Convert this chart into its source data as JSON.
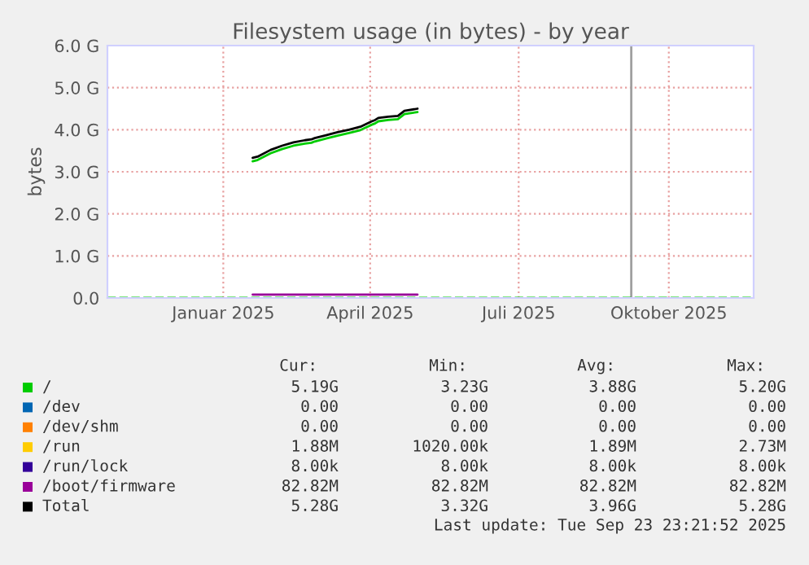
{
  "chart_data": {
    "type": "line",
    "title": "Filesystem usage (in bytes) - by year",
    "ylabel": "bytes",
    "x": [
      "2025-01-19",
      "2025-01-22",
      "2025-01-26",
      "2025-01-30",
      "2025-02-06",
      "2025-02-13",
      "2025-02-20",
      "2025-02-24",
      "2025-02-25",
      "2025-02-26",
      "2025-03-05",
      "2025-03-12",
      "2025-03-19",
      "2025-03-26",
      "2025-03-30",
      "2025-04-02",
      "2025-04-04",
      "2025-04-05",
      "2025-04-06",
      "2025-04-12",
      "2025-04-18",
      "2025-04-20",
      "2025-04-22",
      "2025-04-30"
    ],
    "series": [
      {
        "name": "/",
        "color": "#00cc00",
        "values": [
          3.25,
          3.28,
          null,
          3.44,
          3.54,
          3.62,
          3.67,
          3.69,
          null,
          3.72,
          3.79,
          3.86,
          3.92,
          3.99,
          null,
          4.12,
          4.15,
          null,
          4.2,
          4.23,
          4.25,
          null,
          4.37,
          4.42
        ]
      },
      {
        "name": "/dev",
        "color": "#0066b3",
        "values": [
          null,
          null,
          null,
          null,
          null,
          null,
          null,
          null,
          null,
          null,
          null,
          null,
          null,
          null,
          null,
          null,
          null,
          null,
          null,
          null,
          null,
          null,
          null,
          null
        ]
      },
      {
        "name": "/dev/shm",
        "color": "#ff8000",
        "values": [
          null,
          null,
          null,
          null,
          null,
          null,
          null,
          null,
          null,
          null,
          null,
          null,
          null,
          null,
          null,
          null,
          null,
          null,
          null,
          null,
          null,
          null,
          null,
          null
        ]
      },
      {
        "name": "/run",
        "color": "#ffcc00",
        "values": [
          null,
          null,
          null,
          null,
          null,
          null,
          null,
          null,
          null,
          null,
          null,
          null,
          null,
          null,
          null,
          null,
          null,
          null,
          null,
          null,
          null,
          null,
          null,
          null
        ]
      },
      {
        "name": "/run/lock",
        "color": "#330099",
        "values": [
          null,
          null,
          null,
          null,
          null,
          null,
          null,
          null,
          null,
          null,
          null,
          null,
          null,
          null,
          null,
          null,
          null,
          null,
          null,
          null,
          null,
          null,
          null,
          null
        ]
      },
      {
        "name": "/boot/firmware",
        "color": "#990099",
        "values": [
          0.08,
          0.08,
          null,
          0.08,
          0.08,
          0.08,
          0.08,
          0.08,
          null,
          0.08,
          0.08,
          0.08,
          0.08,
          0.08,
          null,
          0.08,
          0.08,
          null,
          0.08,
          0.08,
          0.08,
          null,
          0.08,
          0.08
        ]
      },
      {
        "name": "Total",
        "color": "#000000",
        "values": [
          3.33,
          3.36,
          null,
          3.52,
          3.62,
          3.7,
          3.75,
          3.77,
          null,
          3.8,
          3.87,
          3.94,
          4.0,
          4.07,
          null,
          4.2,
          4.23,
          null,
          4.28,
          4.31,
          4.33,
          null,
          4.45,
          4.5
        ]
      }
    ],
    "xlim": [
      "2024-10-22",
      "2025-11-22"
    ],
    "xticks": [
      {
        "value": "2025-01-01",
        "label": "Januar 2025"
      },
      {
        "value": "2025-04-01",
        "label": "April 2025"
      },
      {
        "value": "2025-07-01",
        "label": "Juli 2025"
      },
      {
        "value": "2025-10-01",
        "label": "Oktober 2025"
      }
    ],
    "ylim": [
      0,
      6.0
    ],
    "yticks": [
      {
        "value": 0,
        "label": "0.0"
      },
      {
        "value": 1.0,
        "label": "1.0 G"
      },
      {
        "value": 2.0,
        "label": "2.0 G"
      },
      {
        "value": 3.0,
        "label": "3.0 G"
      },
      {
        "value": 4.0,
        "label": "4.0 G"
      },
      {
        "value": 5.0,
        "label": "5.0 G"
      },
      {
        "value": 6.0,
        "label": "6.0 G"
      }
    ],
    "ref_lines": [
      {
        "axis": "x",
        "value": "2025-09-08",
        "color": "#a0a0a0",
        "line_style": "solid"
      },
      {
        "axis": "y",
        "value": 0,
        "color": "#00cc00",
        "line_style": "dashed"
      }
    ],
    "grid": true,
    "legend": "bottom",
    "line_style": "solid",
    "marker": "none",
    "annotations": [
      "Cur:",
      "Min:",
      "Avg:",
      "Max:",
      "5.19G",
      "3.23G",
      "3.88G",
      "5.20G",
      "0.00",
      "0.00",
      "0.00",
      "0.00",
      "0.00",
      "0.00",
      "0.00",
      "0.00",
      "1.88M",
      "1020.00k",
      "1.89M",
      "2.73M",
      "8.00k",
      "8.00k",
      "8.00k",
      "8.00k",
      "82.82M",
      "82.82M",
      "82.82M",
      "82.82M",
      "5.28G",
      "3.32G",
      "3.96G",
      "5.28G",
      "Last update: Tue Sep 23 23:21:52 2025"
    ]
  }
}
